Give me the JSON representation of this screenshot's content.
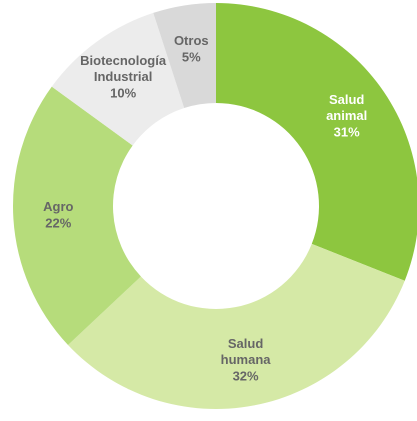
{
  "chart_data": {
    "type": "donut",
    "categories": [
      "Salud animal",
      "Salud humana",
      "Agro",
      "Biotecnología Industrial",
      "Otros"
    ],
    "values": [
      31,
      32,
      22,
      10,
      5
    ],
    "value_labels": [
      "31%",
      "32%",
      "22%",
      "10%",
      "5%"
    ],
    "colors": [
      "#8dc63f",
      "#d5e9a6",
      "#b6dc7b",
      "#ececec",
      "#d9d9d9"
    ],
    "label_colors": [
      "#ffffff",
      "#666666",
      "#666666",
      "#666666",
      "#666666"
    ]
  }
}
